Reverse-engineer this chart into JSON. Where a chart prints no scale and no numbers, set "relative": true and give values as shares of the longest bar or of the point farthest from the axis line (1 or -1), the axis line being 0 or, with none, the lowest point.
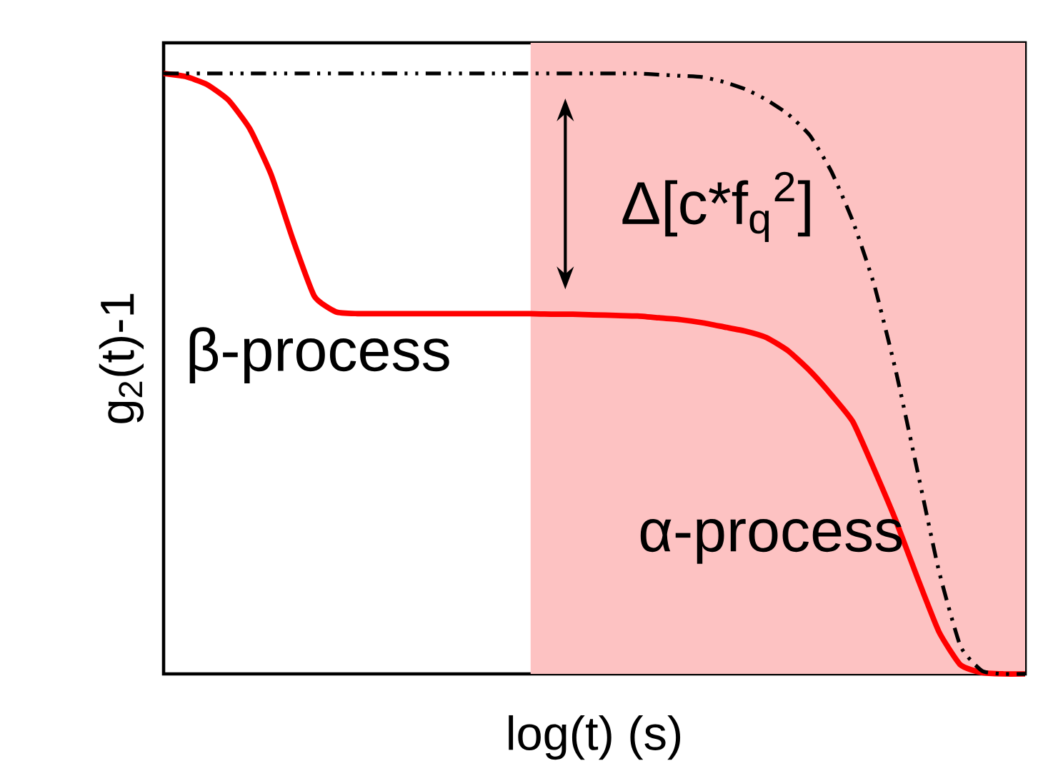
{
  "chart_data": {
    "type": "line",
    "relative": true,
    "xlabel": "log(t) (s)",
    "ylabel": "g$_{2}$(t)-1",
    "categories": [
      null,
      null,
      null,
      null,
      null,
      null,
      null,
      null,
      null,
      null,
      null,
      null,
      null,
      null,
      null,
      null,
      null,
      null,
      null,
      null,
      null,
      null,
      null,
      null,
      null,
      null,
      null,
      null,
      null,
      null,
      null,
      null,
      null,
      null,
      null,
      null,
      null,
      null,
      null,
      null,
      null
    ],
    "series": [
      {
        "color": "#ff0000",
        "line_style": "solid",
        "values": [
          1.0,
          0.995,
          0.982,
          0.956,
          0.908,
          0.831,
          0.724,
          0.629,
          0.603,
          0.6,
          0.6,
          0.6,
          0.6,
          0.6,
          0.6,
          0.6,
          0.6,
          0.6,
          0.599,
          0.599,
          0.598,
          0.597,
          0.596,
          0.593,
          0.59,
          0.585,
          0.578,
          0.571,
          0.56,
          0.538,
          0.505,
          0.465,
          0.42,
          0.34,
          0.255,
          0.16,
          0.07,
          0.015,
          0.002,
          0,
          0
        ]
      },
      {
        "color": "#000000",
        "line_style": "dashed",
        "values": [
          1.0,
          1.0,
          1.0,
          1.0,
          1.0,
          1.0,
          1.0,
          1.0,
          1.0,
          1.0,
          1.0,
          1.0,
          1.0,
          1.0,
          1.0,
          1.0,
          1.0,
          1.0,
          1.0,
          1.0,
          1.0,
          1.0,
          1.0,
          0.998,
          0.996,
          0.994,
          0.986,
          0.974,
          0.956,
          0.932,
          0.897,
          0.837,
          0.754,
          0.647,
          0.504,
          0.338,
          0.171,
          0.046,
          0.005,
          0,
          0
        ]
      }
    ],
    "annotations": [
      "Δ[c*f$_{q}$$^{2}$]",
      "β-process",
      "α-process"
    ],
    "marker": "none"
  }
}
